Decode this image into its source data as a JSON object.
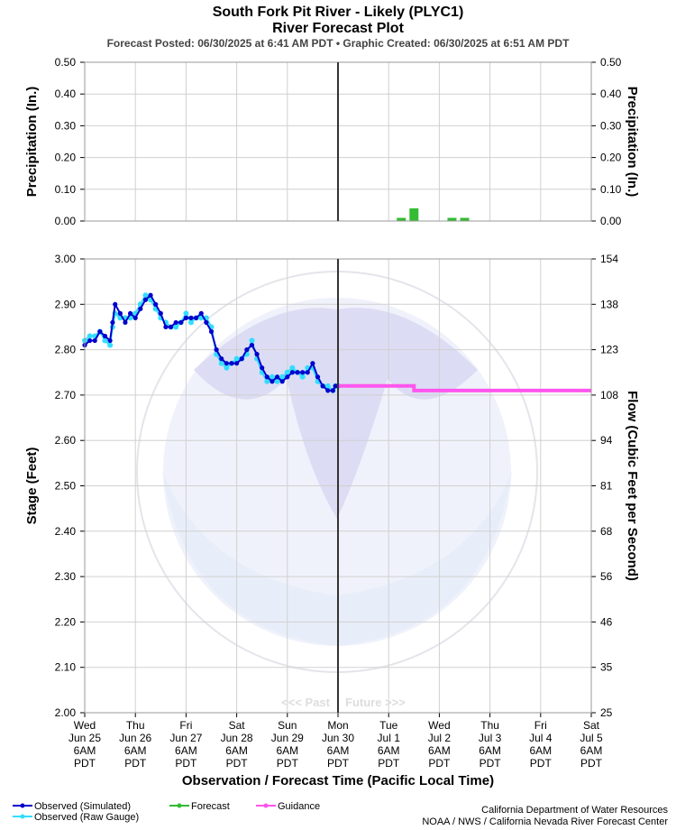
{
  "chart_data": {
    "type": "line",
    "title": "South Fork Pit River - Likely (PLYC1)",
    "subtitle": "River Forecast Plot",
    "posted": "Forecast Posted: 06/30/2025 at 6:41 AM PDT  •  Graphic Created: 06/30/2025 at 6:51 AM PDT",
    "x_axis": {
      "label": "Observation / Forecast Time (Pacific Local Time)",
      "ticks": [
        {
          "d": 0,
          "lines": [
            "Wed",
            "Jun 25",
            "6AM",
            "PDT"
          ]
        },
        {
          "d": 1,
          "lines": [
            "Thu",
            "Jun 26",
            "6AM",
            "PDT"
          ]
        },
        {
          "d": 2,
          "lines": [
            "Fri",
            "Jun 27",
            "6AM",
            "PDT"
          ]
        },
        {
          "d": 3,
          "lines": [
            "Sat",
            "Jun 28",
            "6AM",
            "PDT"
          ]
        },
        {
          "d": 4,
          "lines": [
            "Sun",
            "Jun 29",
            "6AM",
            "PDT"
          ]
        },
        {
          "d": 5,
          "lines": [
            "Mon",
            "Jun 30",
            "6AM",
            "PDT"
          ]
        },
        {
          "d": 6,
          "lines": [
            "Tue",
            "Jul 1",
            "6AM",
            "PDT"
          ]
        },
        {
          "d": 7,
          "lines": [
            "Wed",
            "Jul 2",
            "6AM",
            "PDT"
          ]
        },
        {
          "d": 8,
          "lines": [
            "Thu",
            "Jul 3",
            "6AM",
            "PDT"
          ]
        },
        {
          "d": 9,
          "lines": [
            "Fri",
            "Jul 4",
            "6AM",
            "PDT"
          ]
        },
        {
          "d": 10,
          "lines": [
            "Sat",
            "Jul 5",
            "6AM",
            "PDT"
          ]
        }
      ],
      "now": 5
    },
    "precip_axis": {
      "label": "Precipitation (In.)",
      "ylim": [
        0,
        0.5
      ],
      "ticks": [
        "0.00",
        "0.10",
        "0.20",
        "0.30",
        "0.40",
        "0.50"
      ]
    },
    "stage_axis": {
      "label": "Stage (Feet)",
      "ylim": [
        2.0,
        3.0
      ],
      "ticks": [
        "2.00",
        "2.10",
        "2.20",
        "2.30",
        "2.40",
        "2.50",
        "2.60",
        "2.70",
        "2.80",
        "2.90",
        "3.00"
      ]
    },
    "flow_axis": {
      "label": "Flow (Cubic Feet per Second)",
      "ticks": [
        "25",
        "35",
        "46",
        "56",
        "68",
        "81",
        "94",
        "108",
        "123",
        "138",
        "154"
      ]
    },
    "past_label": "<<< Past",
    "future_label": "Future >>>",
    "precip_forecast": [
      {
        "d": 6.25,
        "v": 0.01
      },
      {
        "d": 6.5,
        "v": 0.04
      },
      {
        "d": 7.25,
        "v": 0.01
      },
      {
        "d": 7.5,
        "v": 0.01
      }
    ],
    "observed_simulated": [
      [
        0.0,
        2.81
      ],
      [
        0.1,
        2.82
      ],
      [
        0.2,
        2.82
      ],
      [
        0.3,
        2.84
      ],
      [
        0.4,
        2.83
      ],
      [
        0.5,
        2.82
      ],
      [
        0.55,
        2.86
      ],
      [
        0.6,
        2.9
      ],
      [
        0.7,
        2.88
      ],
      [
        0.8,
        2.86
      ],
      [
        0.9,
        2.88
      ],
      [
        1.0,
        2.87
      ],
      [
        1.1,
        2.89
      ],
      [
        1.2,
        2.91
      ],
      [
        1.3,
        2.92
      ],
      [
        1.4,
        2.9
      ],
      [
        1.5,
        2.88
      ],
      [
        1.6,
        2.85
      ],
      [
        1.7,
        2.85
      ],
      [
        1.8,
        2.86
      ],
      [
        1.9,
        2.86
      ],
      [
        2.0,
        2.87
      ],
      [
        2.1,
        2.87
      ],
      [
        2.2,
        2.87
      ],
      [
        2.3,
        2.88
      ],
      [
        2.4,
        2.86
      ],
      [
        2.5,
        2.84
      ],
      [
        2.6,
        2.8
      ],
      [
        2.7,
        2.78
      ],
      [
        2.8,
        2.77
      ],
      [
        2.9,
        2.77
      ],
      [
        3.0,
        2.77
      ],
      [
        3.1,
        2.78
      ],
      [
        3.2,
        2.8
      ],
      [
        3.3,
        2.81
      ],
      [
        3.4,
        2.79
      ],
      [
        3.5,
        2.76
      ],
      [
        3.6,
        2.74
      ],
      [
        3.7,
        2.73
      ],
      [
        3.8,
        2.74
      ],
      [
        3.9,
        2.73
      ],
      [
        4.0,
        2.74
      ],
      [
        4.1,
        2.75
      ],
      [
        4.2,
        2.75
      ],
      [
        4.3,
        2.75
      ],
      [
        4.4,
        2.75
      ],
      [
        4.5,
        2.77
      ],
      [
        4.6,
        2.74
      ],
      [
        4.7,
        2.72
      ],
      [
        4.8,
        2.71
      ],
      [
        4.9,
        2.71
      ],
      [
        4.95,
        2.72
      ],
      [
        5.0,
        2.72
      ]
    ],
    "observed_raw": [
      [
        0.0,
        2.82
      ],
      [
        0.1,
        2.83
      ],
      [
        0.2,
        2.83
      ],
      [
        0.3,
        2.84
      ],
      [
        0.4,
        2.82
      ],
      [
        0.5,
        2.81
      ],
      [
        0.55,
        2.85
      ],
      [
        0.6,
        2.88
      ],
      [
        0.7,
        2.87
      ],
      [
        0.8,
        2.87
      ],
      [
        0.9,
        2.87
      ],
      [
        1.0,
        2.88
      ],
      [
        1.1,
        2.9
      ],
      [
        1.2,
        2.92
      ],
      [
        1.3,
        2.91
      ],
      [
        1.4,
        2.89
      ],
      [
        1.5,
        2.87
      ],
      [
        1.6,
        2.86
      ],
      [
        1.7,
        2.85
      ],
      [
        1.8,
        2.85
      ],
      [
        1.9,
        2.86
      ],
      [
        2.0,
        2.88
      ],
      [
        2.1,
        2.86
      ],
      [
        2.2,
        2.87
      ],
      [
        2.3,
        2.87
      ],
      [
        2.4,
        2.87
      ],
      [
        2.5,
        2.85
      ],
      [
        2.6,
        2.79
      ],
      [
        2.7,
        2.77
      ],
      [
        2.8,
        2.76
      ],
      [
        2.9,
        2.77
      ],
      [
        3.0,
        2.78
      ],
      [
        3.1,
        2.78
      ],
      [
        3.2,
        2.79
      ],
      [
        3.3,
        2.82
      ],
      [
        3.4,
        2.78
      ],
      [
        3.5,
        2.75
      ],
      [
        3.6,
        2.73
      ],
      [
        3.7,
        2.74
      ],
      [
        3.8,
        2.73
      ],
      [
        3.9,
        2.74
      ],
      [
        4.0,
        2.75
      ],
      [
        4.1,
        2.76
      ],
      [
        4.2,
        2.75
      ],
      [
        4.3,
        2.74
      ],
      [
        4.4,
        2.76
      ],
      [
        4.5,
        2.76
      ],
      [
        4.6,
        2.73
      ],
      [
        4.7,
        2.72
      ],
      [
        4.8,
        2.72
      ],
      [
        4.9,
        2.71
      ],
      [
        4.95,
        2.72
      ],
      [
        5.0,
        2.72
      ]
    ],
    "guidance": [
      [
        5.0,
        2.72
      ],
      [
        5.5,
        2.72
      ],
      [
        6.0,
        2.72
      ],
      [
        6.5,
        2.72
      ],
      [
        6.5,
        2.71
      ],
      [
        7.0,
        2.71
      ],
      [
        7.5,
        2.71
      ],
      [
        8.0,
        2.71
      ],
      [
        8.5,
        2.71
      ],
      [
        9.0,
        2.71
      ],
      [
        9.5,
        2.71
      ],
      [
        10.0,
        2.71
      ]
    ],
    "legend": [
      {
        "key": "sim",
        "label": "Observed (Simulated)",
        "color": "#0000cc"
      },
      {
        "key": "raw",
        "label": "Observed (Raw Gauge)",
        "color": "#33ddff"
      },
      {
        "key": "fcst",
        "label": "Forecast",
        "color": "#33bb33"
      },
      {
        "key": "guid",
        "label": "Guidance",
        "color": "#ff55ee"
      }
    ],
    "credits": [
      "California Department of Water Resources",
      "NOAA / NWS / California Nevada River Forecast Center"
    ],
    "colors": {
      "observed_simulated": "#0000cc",
      "observed_raw": "#33ddff",
      "forecast": "#33bb33",
      "guidance": "#ff55ee",
      "now_line": "#333333",
      "precip_zero": "#aaaadd"
    }
  }
}
